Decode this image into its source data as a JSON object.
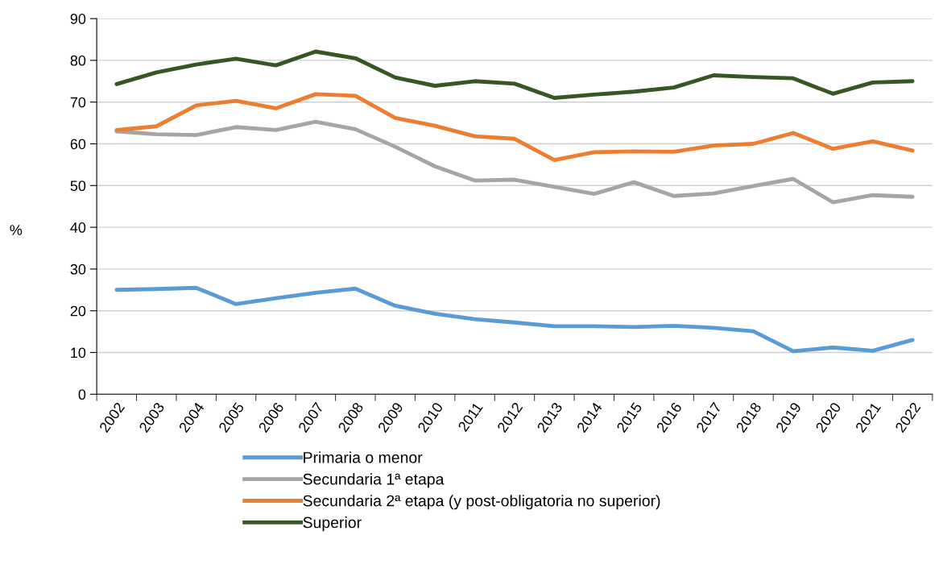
{
  "chart_data": {
    "type": "line",
    "ylabel": "%",
    "categories": [
      "2002",
      "2003",
      "2004",
      "2005",
      "2006",
      "2007",
      "2008",
      "2009",
      "2010",
      "2011",
      "2012",
      "2013",
      "2014",
      "2015",
      "2016",
      "2017",
      "2018",
      "2019",
      "2020",
      "2021",
      "2022"
    ],
    "series": [
      {
        "name": "Primaria o menor",
        "color": "#5b9bd5",
        "values": [
          25,
          25.2,
          25.5,
          21.6,
          23,
          24.3,
          25.3,
          21.2,
          19.3,
          18,
          17.2,
          16.3,
          16.3,
          16.1,
          16.4,
          15.9,
          15.1,
          10.3,
          11.2,
          10.4,
          13
        ]
      },
      {
        "name": "Secundaria 1ª etapa",
        "color": "#a5a5a5",
        "values": [
          63,
          62.3,
          62.1,
          64,
          63.3,
          65.3,
          63.5,
          59.3,
          54.6,
          51.2,
          51.4,
          49.7,
          48,
          50.8,
          47.5,
          48.1,
          49.9,
          51.6,
          46,
          47.7,
          47.3
        ]
      },
      {
        "name": "Secundaria 2ª etapa (y post-obligatoria no superior)",
        "color": "#ed7d31",
        "values": [
          63.3,
          64.2,
          69.2,
          70.3,
          68.5,
          71.9,
          71.5,
          66.2,
          64.3,
          61.8,
          61.2,
          56.1,
          58,
          58.2,
          58.1,
          59.6,
          60,
          62.6,
          58.8,
          60.6,
          58.4
        ]
      },
      {
        "name": "Superior",
        "color": "#375623",
        "values": [
          74.3,
          77.1,
          79,
          80.4,
          78.8,
          82.1,
          80.5,
          75.9,
          73.9,
          75,
          74.4,
          71,
          71.8,
          72.5,
          73.5,
          76.4,
          76,
          75.7,
          72,
          74.7,
          75
        ]
      }
    ],
    "ylim": [
      0,
      90
    ],
    "yticks": [
      0,
      10,
      20,
      30,
      40,
      50,
      60,
      70,
      80,
      90
    ],
    "grid": "y",
    "legend": "bottom",
    "marker": "none",
    "line_style": "solid"
  }
}
